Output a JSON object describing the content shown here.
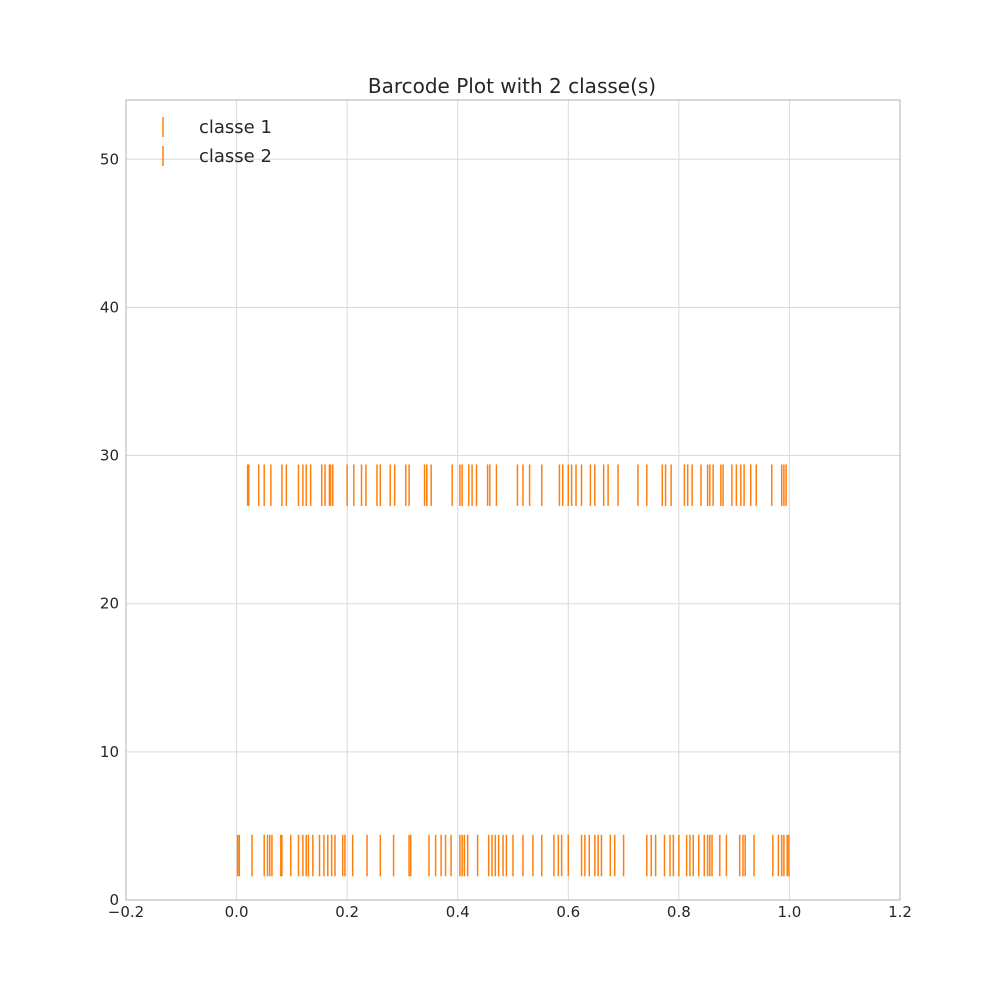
{
  "chart_data": {
    "type": "barcode",
    "title": "Barcode Plot with 2 classe(s)",
    "xlim": [
      -0.2,
      1.2
    ],
    "ylim": [
      0,
      54
    ],
    "xticks": [
      -0.2,
      0.0,
      0.2,
      0.4,
      0.6,
      0.8,
      1.0,
      1.2
    ],
    "xtick_labels": [
      "−0.2",
      "0.0",
      "0.2",
      "0.4",
      "0.6",
      "0.8",
      "1.0",
      "1.2"
    ],
    "yticks": [
      0,
      10,
      20,
      30,
      40,
      50
    ],
    "ytick_labels": [
      "0",
      "10",
      "20",
      "30",
      "40",
      "50"
    ],
    "grid": true,
    "legend_position": "top-left",
    "color": "#ff7f0e",
    "series": [
      {
        "name": "classe 1",
        "y": 3,
        "x": [
          0.002,
          0.005,
          0.028,
          0.05,
          0.056,
          0.06,
          0.064,
          0.08,
          0.082,
          0.098,
          0.112,
          0.12,
          0.126,
          0.13,
          0.138,
          0.15,
          0.158,
          0.165,
          0.172,
          0.178,
          0.192,
          0.196,
          0.21,
          0.236,
          0.26,
          0.284,
          0.312,
          0.315,
          0.348,
          0.36,
          0.37,
          0.378,
          0.388,
          0.404,
          0.408,
          0.412,
          0.418,
          0.436,
          0.456,
          0.462,
          0.468,
          0.474,
          0.482,
          0.488,
          0.5,
          0.518,
          0.536,
          0.552,
          0.574,
          0.582,
          0.588,
          0.6,
          0.624,
          0.63,
          0.638,
          0.648,
          0.654,
          0.66,
          0.676,
          0.684,
          0.7,
          0.742,
          0.75,
          0.758,
          0.774,
          0.784,
          0.79,
          0.8,
          0.814,
          0.82,
          0.826,
          0.836,
          0.846,
          0.852,
          0.856,
          0.86,
          0.874,
          0.886,
          0.91,
          0.916,
          0.92,
          0.936,
          0.97,
          0.98,
          0.986,
          0.99,
          0.996,
          0.999
        ]
      },
      {
        "name": "classe 2",
        "y": 28,
        "x": [
          0.02,
          0.022,
          0.04,
          0.05,
          0.062,
          0.082,
          0.09,
          0.112,
          0.12,
          0.126,
          0.134,
          0.154,
          0.16,
          0.168,
          0.17,
          0.174,
          0.2,
          0.212,
          0.226,
          0.234,
          0.254,
          0.26,
          0.278,
          0.286,
          0.306,
          0.312,
          0.34,
          0.344,
          0.352,
          0.39,
          0.404,
          0.408,
          0.42,
          0.426,
          0.434,
          0.454,
          0.458,
          0.47,
          0.508,
          0.518,
          0.53,
          0.552,
          0.584,
          0.59,
          0.6,
          0.606,
          0.614,
          0.624,
          0.64,
          0.648,
          0.664,
          0.672,
          0.69,
          0.726,
          0.742,
          0.77,
          0.776,
          0.786,
          0.81,
          0.816,
          0.824,
          0.84,
          0.852,
          0.856,
          0.862,
          0.876,
          0.88,
          0.896,
          0.904,
          0.912,
          0.918,
          0.93,
          0.94,
          0.968,
          0.986,
          0.99,
          0.994
        ]
      }
    ]
  }
}
